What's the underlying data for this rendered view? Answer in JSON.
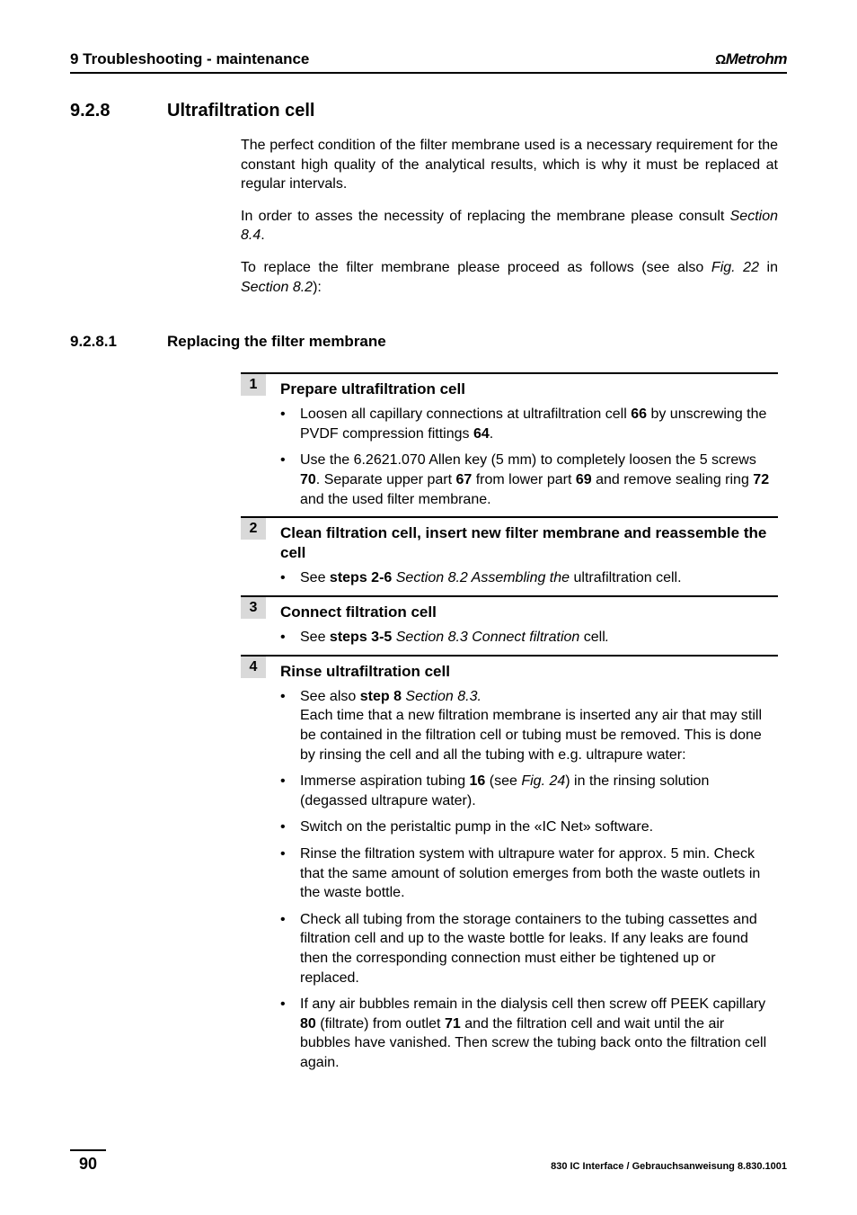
{
  "header": {
    "left": "9 Troubleshooting - maintenance",
    "brand_symbol": "Ω",
    "brand": "Metrohm"
  },
  "section_928": {
    "num": "9.2.8",
    "title": "Ultrafiltration cell",
    "paras": {
      "p1": "The perfect condition of the filter membrane used is a necessary requirement for the constant high quality of the analytical results, which is why it must be replaced at regular intervals.",
      "p2a": "In order to asses the necessity of replacing the membrane please consult ",
      "p2b": "Section 8.4",
      "p2c": ".",
      "p3a": "To replace the filter membrane please proceed as follows (see also ",
      "p3b": "Fig. 22",
      "p3c": " in ",
      "p3d": "Section 8.2",
      "p3e": "):"
    }
  },
  "section_9281": {
    "num": "9.2.8.1",
    "title": "Replacing the filter membrane"
  },
  "steps": {
    "s1": {
      "num": "1",
      "title": "Prepare ultrafiltration cell",
      "b1a": "Loosen all capillary connections at ultrafiltration cell ",
      "b1b": "66",
      "b1c": " by unscrewing the PVDF compression fittings ",
      "b1d": "64",
      "b1e": ".",
      "b2a": "Use the 6.2621.070 Allen key (5 mm) to completely loosen the 5 screws ",
      "b2b": "70",
      "b2c": ". Separate upper part ",
      "b2d": "67",
      "b2e": " from lower part ",
      "b2f": "69",
      "b2g": " and remove sealing ring ",
      "b2h": "72",
      "b2i": " and the used filter membrane."
    },
    "s2": {
      "num": "2",
      "title": "Clean filtration cell, insert new filter membrane and reassemble the cell",
      "b1a": "See ",
      "b1b": "steps 2-6",
      "b1c": " ",
      "b1d": "Section 8.2 Assembling the",
      "b1e": " ultrafiltration cell."
    },
    "s3": {
      "num": "3",
      "title": "Connect filtration cell",
      "b1a": "See ",
      "b1b": "steps 3-5",
      "b1c": " ",
      "b1d": "Section 8.3 Connect filtration",
      "b1e": " cell",
      "b1f": "."
    },
    "s4": {
      "num": "4",
      "title": "Rinse ultrafiltration cell",
      "b1a": "See also ",
      "b1b": "step 8",
      "b1c": " ",
      "b1d": "Section 8.3.",
      "b1e": "Each time that a new filtration membrane is inserted any air that may still be contained in the filtration cell or tubing must be removed. This is done by rinsing the cell and all the tubing with e.g. ultrapure water:",
      "b2a": "Immerse aspiration tubing ",
      "b2b": "16",
      "b2c": " (see ",
      "b2d": "Fig. 24",
      "b2e": ") in the rinsing solution (degassed ultrapure water).",
      "b3": "Switch on the peristaltic pump in the «IC Net» software.",
      "b4": "Rinse the filtration system with ultrapure water for approx. 5 min. Check that the same amount of solution emerges from both the waste outlets in the waste bottle.",
      "b5": "Check all tubing from the storage containers to the tubing cassettes and filtration cell and up to the waste bottle for leaks. If any leaks are found then the corresponding connection must either be tightened up or replaced.",
      "b6a": "If any air bubbles remain in the dialysis cell then screw off PEEK capillary ",
      "b6b": "80",
      "b6c": " (filtrate) from outlet ",
      "b6d": "71",
      "b6e": " and the filtration cell and wait until the air bubbles have vanished. Then screw the tubing back onto the filtration cell again."
    }
  },
  "footer": {
    "page": "90",
    "text": "830 IC Interface / Gebrauchsanweisung 8.830.1001"
  }
}
